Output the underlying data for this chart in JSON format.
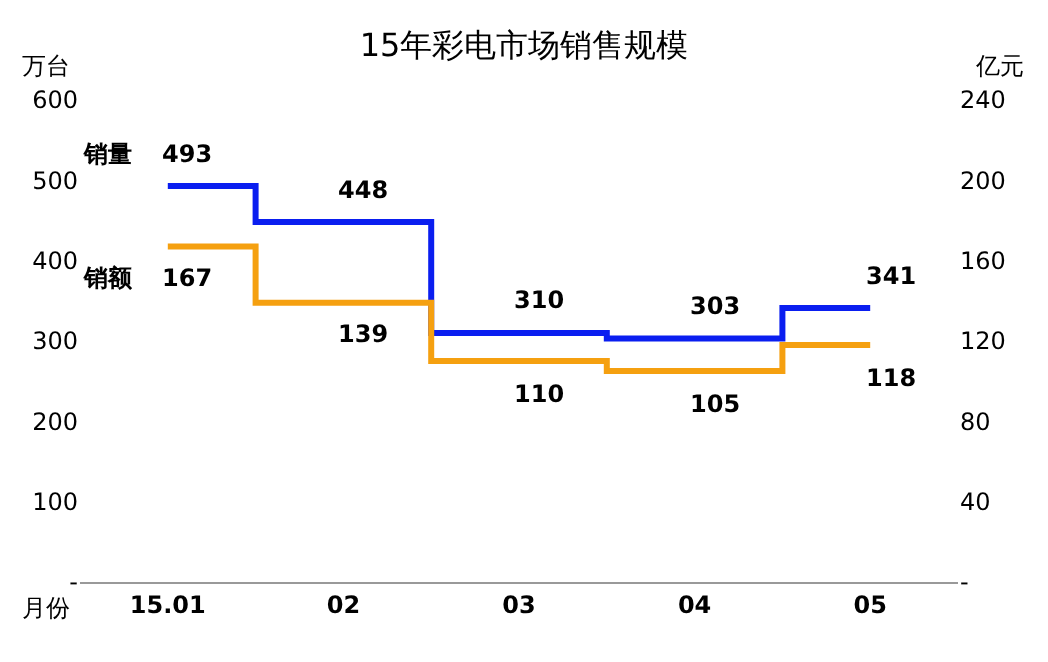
{
  "chart_data": {
    "type": "step",
    "title": "15年彩电市场销售规模",
    "xlabel": "月份",
    "ylabel": "万台",
    "y2label": "亿元",
    "categories": [
      "15.01",
      "02",
      "03",
      "04",
      "05"
    ],
    "series": [
      {
        "name": "销量",
        "color": "#0a1ef0",
        "values": [
          493,
          448,
          310,
          303,
          341
        ]
      },
      {
        "name": "销额",
        "color": "#f5a010",
        "values": [
          167,
          139,
          110,
          105,
          118
        ],
        "axis": "y2"
      }
    ],
    "ylim": [
      0,
      600
    ],
    "yticks": [
      {
        "value": 0,
        "label": "-"
      },
      100,
      200,
      300,
      400,
      500,
      600
    ],
    "y2lim": [
      0,
      240
    ],
    "y2ticks": [
      {
        "value": 0,
        "label": "-"
      },
      40,
      80,
      120,
      160,
      200,
      240
    ],
    "data_labels": true,
    "marker": "none",
    "legend": false
  }
}
